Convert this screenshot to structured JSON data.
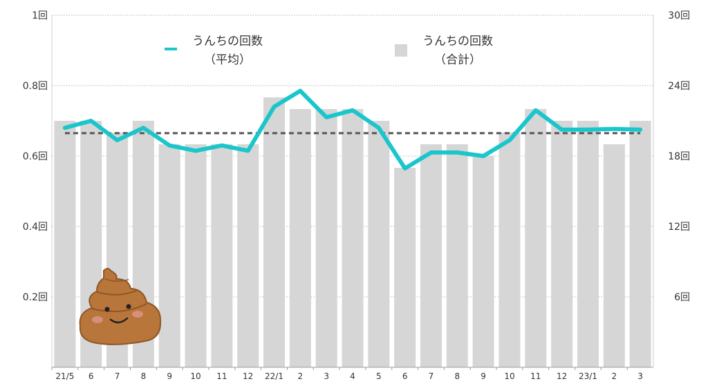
{
  "chart_data": {
    "type": "bar",
    "categories": [
      "21/5",
      "6",
      "7",
      "8",
      "9",
      "10",
      "11",
      "12",
      "22/1",
      "2",
      "3",
      "4",
      "5",
      "6",
      "7",
      "8",
      "9",
      "10",
      "11",
      "12",
      "23/1",
      "2",
      "3"
    ],
    "series": [
      {
        "name_lines": [
          "うんちの回数",
          "（合計）"
        ],
        "type": "bar",
        "axis": "right",
        "color": "#d6d6d6",
        "values": [
          21,
          21,
          20,
          21,
          19,
          19,
          19,
          19,
          23,
          22,
          22,
          22,
          21,
          17,
          19,
          19,
          18,
          20,
          22,
          21,
          21,
          19,
          21
        ]
      },
      {
        "name_lines": [
          "うんちの回数",
          "（平均）"
        ],
        "type": "line",
        "axis": "left",
        "color": "#1ac6cc",
        "values": [
          0.68,
          0.7,
          0.645,
          0.68,
          0.63,
          0.615,
          0.63,
          0.615,
          0.74,
          0.785,
          0.71,
          0.73,
          0.68,
          0.565,
          0.61,
          0.61,
          0.6,
          0.645,
          0.73,
          0.675,
          0.675,
          0.677,
          0.675
        ]
      }
    ],
    "reference_line": {
      "axis": "left",
      "value": 0.665,
      "style": "dashed",
      "color": "#555555"
    },
    "y_left": {
      "min": 0,
      "max": 1,
      "ticks": [
        0.2,
        0.4,
        0.6,
        0.8,
        1
      ],
      "tick_labels": [
        "0.2回",
        "0.4回",
        "0.6回",
        "0.8回",
        "1回"
      ]
    },
    "y_right": {
      "min": 0,
      "max": 30,
      "ticks": [
        6,
        12,
        18,
        24,
        30
      ],
      "tick_labels": [
        "6回",
        "12回",
        "18回",
        "24回",
        "30回"
      ]
    },
    "grid": true,
    "legend_placement": "top",
    "decoration": "poop-icon"
  }
}
